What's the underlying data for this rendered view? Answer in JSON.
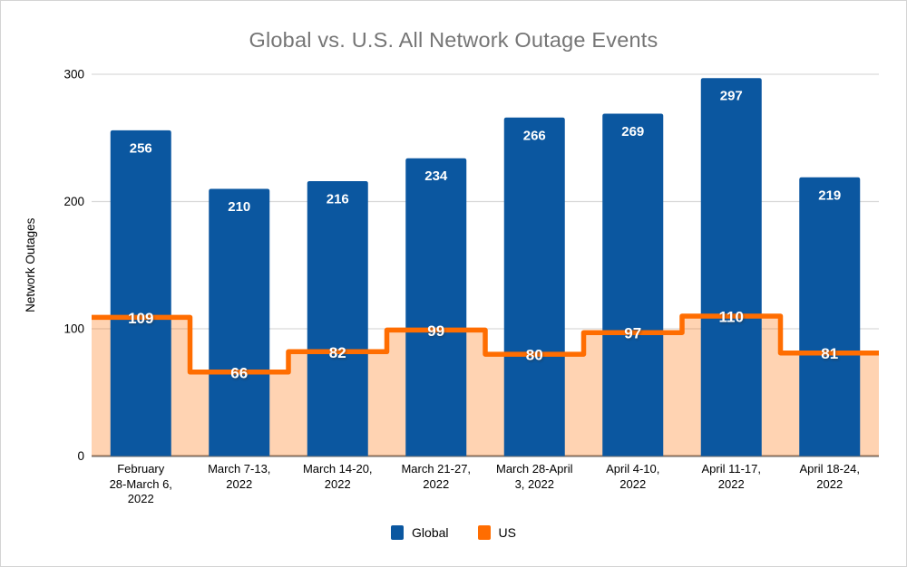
{
  "title": "Global vs. U.S. All Network Outage Events",
  "chart_data": {
    "type": "combo: bar + stepped area line",
    "title": "Global vs. U.S. All Network Outage Events",
    "xlabel": "",
    "ylabel": "Network Outages",
    "ylim": [
      0,
      300
    ],
    "yticks": [
      0,
      100,
      200,
      300
    ],
    "grid": true,
    "legend_position": "bottom",
    "colors": {
      "title_text": "#757575",
      "axis_text": "#000000",
      "gridline": "#d9d9d9",
      "axis_line": "#6f6f6f",
      "global_bar": "#0b57a0",
      "us_line": "#ff6d01",
      "us_area_fill": "rgba(255,109,1,0.3)",
      "value_label": "#ffffff"
    },
    "categories": [
      {
        "label": "February 28-March 6, 2022",
        "lines": [
          "February",
          "28-March 6,",
          "2022"
        ]
      },
      {
        "label": "March 7-13, 2022",
        "lines": [
          "March 7-13,",
          "2022"
        ]
      },
      {
        "label": "March 14-20, 2022",
        "lines": [
          "March 14-20,",
          "2022"
        ]
      },
      {
        "label": "March 21-27, 2022",
        "lines": [
          "March 21-27,",
          "2022"
        ]
      },
      {
        "label": "March 28-April 3, 2022",
        "lines": [
          "March 28-April",
          "3, 2022"
        ]
      },
      {
        "label": "April 4-10, 2022",
        "lines": [
          "April 4-10,",
          "2022"
        ]
      },
      {
        "label": "April 11-17, 2022",
        "lines": [
          "April 11-17,",
          "2022"
        ]
      },
      {
        "label": "April 18-24, 2022",
        "lines": [
          "April 18-24,",
          "2022"
        ]
      }
    ],
    "series": [
      {
        "name": "Global",
        "type": "bar",
        "color": "#0b57a0",
        "values": [
          256,
          210,
          216,
          234,
          266,
          269,
          297,
          219
        ]
      },
      {
        "name": "US",
        "type": "stepped-area-line",
        "color": "#ff6d01",
        "area_fill": "rgba(255,109,1,0.3)",
        "values": [
          109,
          66,
          82,
          99,
          80,
          97,
          110,
          81
        ]
      }
    ]
  }
}
